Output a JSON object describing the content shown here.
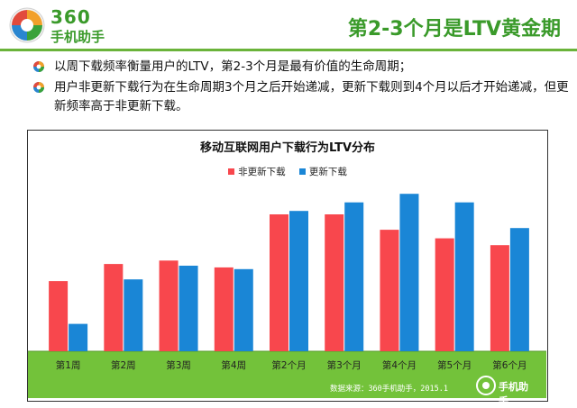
{
  "brand": {
    "number": "360",
    "name": "手机助手",
    "color": "#3a9a2a"
  },
  "slide": {
    "title": "第2-3个月是LTV黄金期"
  },
  "bullets": [
    {
      "text": "以周下载频率衡量用户的LTV，第2-3个月是最有价值的生命周期；"
    },
    {
      "text": "用户非更新下载行为在生命周期3个月之后开始递减，更新下载则到4个月以后才开始递减，但更新频率高于非更新下载。"
    }
  ],
  "footer": {
    "source": "数据来源：360手机助手，2015.1",
    "logo_name": "手机助手"
  },
  "colors": {
    "non_update": "#f8474d",
    "update": "#1a86d6",
    "band": "#73c23a",
    "accent": "#6ab33a"
  },
  "chart_data": {
    "type": "bar",
    "title": "移动互联网用户下载行为LTV分布",
    "categories": [
      "第1周",
      "第2周",
      "第3周",
      "第4周",
      "第2个月",
      "第3个月",
      "第4个月",
      "第5个月",
      "第6个月"
    ],
    "series": [
      {
        "name": "非更新下载",
        "values": [
          41,
          51,
          53,
          49,
          80,
          80,
          71,
          66,
          62
        ]
      },
      {
        "name": "更新下载",
        "values": [
          16,
          42,
          50,
          48,
          82,
          87,
          92,
          87,
          72
        ]
      }
    ],
    "ylim": [
      0,
      100
    ],
    "legend": "top-center",
    "grid": false,
    "xlabel": "",
    "ylabel": ""
  }
}
